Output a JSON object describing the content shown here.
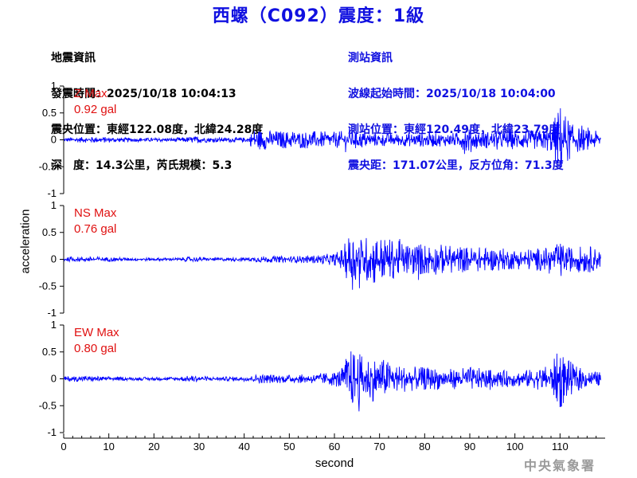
{
  "title": "西螺（C092）震度：1級",
  "quake_info": {
    "heading": "地震資訊",
    "origin_time": "發震時間：2025/10/18 10:04:13",
    "epicenter": "震央位置：東經122.08度，北緯24.28度",
    "depth_magnitude": "深　度：14.3公里，芮氏規模：5.3"
  },
  "station_info": {
    "heading": "測站資訊",
    "wave_start": "波線起始時間：2025/10/18 10:04:00",
    "station_location": "測站位置：東經120.49度，北緯23.79度",
    "distance": "震央距：171.07公里，反方位角：71.3度"
  },
  "watermark": "中央氣象署",
  "chart_data": {
    "type": "line",
    "xlabel": "second",
    "ylabel": "acceleration",
    "xlim": [
      0,
      120
    ],
    "xticks": [
      "0",
      "10",
      "20",
      "30",
      "40",
      "50",
      "60",
      "70",
      "80",
      "90",
      "100",
      "110"
    ],
    "line_color": "#0000ff",
    "label_color": "#e01010",
    "panels": [
      {
        "name": "Z Max",
        "max_label": "0.92 gal",
        "peak": 0.92,
        "ylim": [
          -1,
          1
        ],
        "yticks": [
          "1",
          "0.5",
          "0",
          "-0.5",
          "-1"
        ],
        "envelope": [
          [
            0,
            0.06
          ],
          [
            5,
            0.07
          ],
          [
            8,
            0.08
          ],
          [
            15,
            0.05
          ],
          [
            25,
            0.05
          ],
          [
            29,
            0.09
          ],
          [
            32,
            0.06
          ],
          [
            41,
            0.06
          ],
          [
            42,
            0.28
          ],
          [
            45,
            0.24
          ],
          [
            50,
            0.22
          ],
          [
            55,
            0.22
          ],
          [
            60,
            0.2
          ],
          [
            63,
            0.24
          ],
          [
            66,
            0.22
          ],
          [
            70,
            0.16
          ],
          [
            75,
            0.16
          ],
          [
            80,
            0.18
          ],
          [
            85,
            0.16
          ],
          [
            88,
            0.2
          ],
          [
            89,
            0.38
          ],
          [
            91,
            0.22
          ],
          [
            95,
            0.22
          ],
          [
            100,
            0.24
          ],
          [
            105,
            0.24
          ],
          [
            108,
            0.32
          ],
          [
            110,
            0.92
          ],
          [
            111,
            0.7
          ],
          [
            113,
            0.35
          ],
          [
            116,
            0.25
          ],
          [
            120,
            0.2
          ]
        ]
      },
      {
        "name": "NS Max",
        "max_label": "0.76 gal",
        "peak": 0.76,
        "ylim": [
          -1,
          1
        ],
        "yticks": [
          "1",
          "0.5",
          "0",
          "-0.5",
          "-1"
        ],
        "envelope": [
          [
            0,
            0.05
          ],
          [
            5,
            0.07
          ],
          [
            8,
            0.06
          ],
          [
            15,
            0.04
          ],
          [
            25,
            0.04
          ],
          [
            29,
            0.07
          ],
          [
            32,
            0.04
          ],
          [
            41,
            0.05
          ],
          [
            43,
            0.08
          ],
          [
            50,
            0.08
          ],
          [
            55,
            0.1
          ],
          [
            60,
            0.15
          ],
          [
            62,
            0.3
          ],
          [
            63,
            0.6
          ],
          [
            64,
            0.76
          ],
          [
            66,
            0.55
          ],
          [
            69,
            0.65
          ],
          [
            71,
            0.55
          ],
          [
            73,
            0.5
          ],
          [
            76,
            0.4
          ],
          [
            80,
            0.42
          ],
          [
            83,
            0.38
          ],
          [
            86,
            0.35
          ],
          [
            90,
            0.32
          ],
          [
            95,
            0.3
          ],
          [
            100,
            0.25
          ],
          [
            104,
            0.28
          ],
          [
            108,
            0.3
          ],
          [
            110,
            0.42
          ],
          [
            112,
            0.3
          ],
          [
            116,
            0.35
          ],
          [
            118,
            0.28
          ],
          [
            120,
            0.2
          ]
        ]
      },
      {
        "name": "EW Max",
        "max_label": "0.80 gal",
        "peak": 0.8,
        "ylim": [
          -1,
          1
        ],
        "yticks": [
          "1",
          "0.5",
          "0",
          "-0.5",
          "-1"
        ],
        "envelope": [
          [
            0,
            0.06
          ],
          [
            5,
            0.08
          ],
          [
            8,
            0.06
          ],
          [
            15,
            0.04
          ],
          [
            25,
            0.05
          ],
          [
            29,
            0.09
          ],
          [
            32,
            0.05
          ],
          [
            41,
            0.06
          ],
          [
            43,
            0.12
          ],
          [
            50,
            0.1
          ],
          [
            55,
            0.12
          ],
          [
            60,
            0.18
          ],
          [
            62,
            0.3
          ],
          [
            63,
            0.7
          ],
          [
            64,
            0.75
          ],
          [
            66,
            0.6
          ],
          [
            69,
            0.55
          ],
          [
            71,
            0.5
          ],
          [
            74,
            0.35
          ],
          [
            78,
            0.3
          ],
          [
            82,
            0.28
          ],
          [
            86,
            0.25
          ],
          [
            90,
            0.3
          ],
          [
            95,
            0.22
          ],
          [
            100,
            0.2
          ],
          [
            104,
            0.24
          ],
          [
            108,
            0.35
          ],
          [
            110,
            0.8
          ],
          [
            111,
            0.6
          ],
          [
            113,
            0.35
          ],
          [
            116,
            0.22
          ],
          [
            120,
            0.15
          ]
        ]
      }
    ]
  }
}
